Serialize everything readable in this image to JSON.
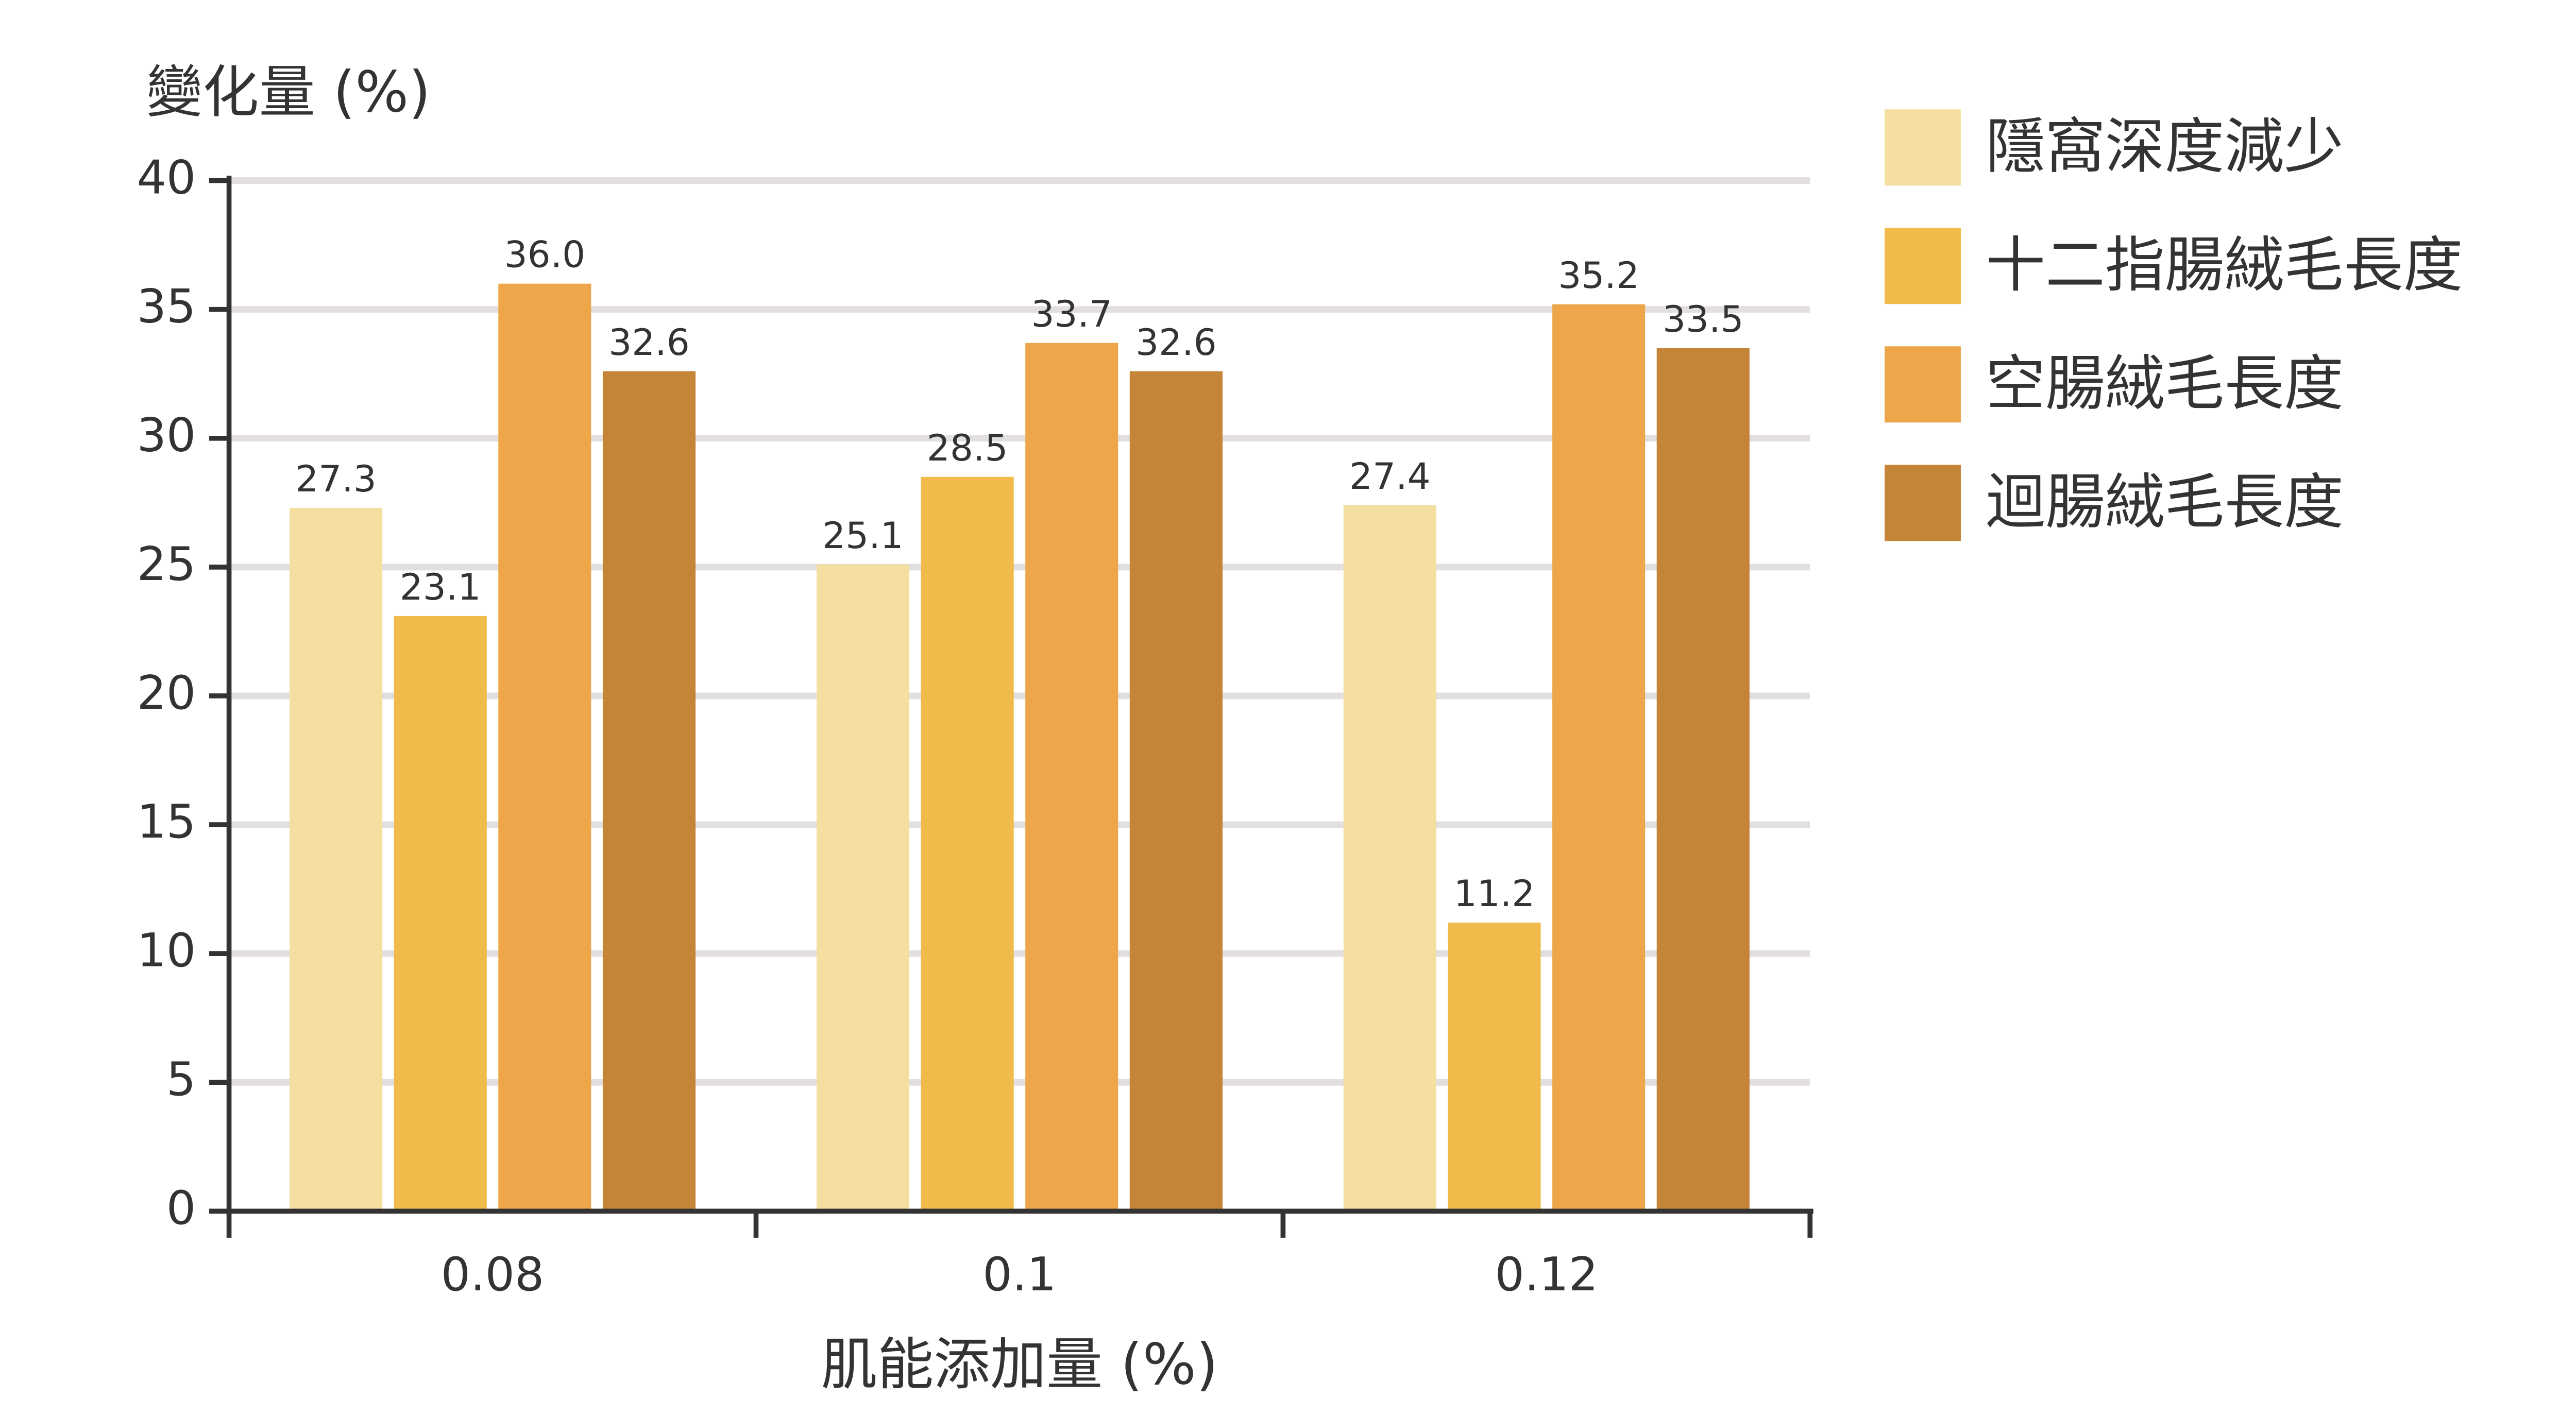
{
  "chart_data": {
    "type": "bar",
    "y_label": "變化量 (%)",
    "x_label": "肌能添加量 (%)",
    "categories": [
      "0.08",
      "0.1",
      "0.12"
    ],
    "series": [
      {
        "name": "隱窩深度減少",
        "color": "#f5dfa0",
        "values": [
          27.3,
          25.1,
          27.4
        ]
      },
      {
        "name": "十二指腸絨毛長度",
        "color": "#f0bb4a",
        "values": [
          23.1,
          28.5,
          11.2
        ]
      },
      {
        "name": "空腸絨毛長度",
        "color": "#eda74a",
        "values": [
          36.0,
          33.7,
          35.2
        ],
        "value_labels": [
          "36.0",
          "33.7",
          "35.2"
        ]
      },
      {
        "name": "迴腸絨毛長度",
        "color": "#c48538",
        "values": [
          32.6,
          32.6,
          33.5
        ]
      }
    ],
    "ylim": [
      0,
      40
    ],
    "yticks": [
      0,
      5,
      10,
      15,
      20,
      25,
      30,
      35,
      40
    ],
    "grid": true
  }
}
